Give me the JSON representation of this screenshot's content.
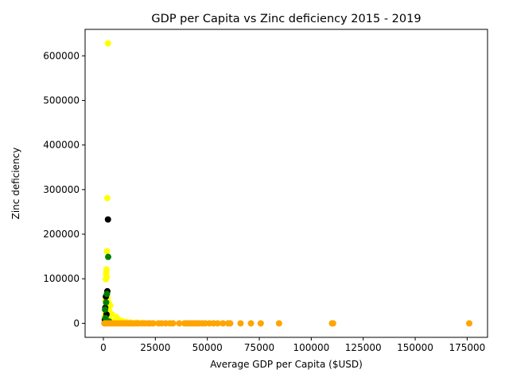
{
  "chart_data": {
    "type": "scatter",
    "title": "GDP per Capita vs Zinc deficiency 2015 - 2019",
    "xlabel": "Average GDP per Capita ($USD)",
    "ylabel": "Zinc deficiency",
    "xlim": [
      -8800,
      184800
    ],
    "ylim": [
      -31400,
      659400
    ],
    "x_ticks": [
      0,
      25000,
      50000,
      75000,
      100000,
      125000,
      150000,
      175000
    ],
    "y_ticks": [
      0,
      100000,
      200000,
      300000,
      400000,
      500000,
      600000
    ],
    "grid": false,
    "legend": "none",
    "series": [
      {
        "color": "#ffff00",
        "points": [
          [
            2200,
            628000
          ],
          [
            1900,
            281000
          ],
          [
            1700,
            162000
          ],
          [
            1500,
            121000
          ],
          [
            1400,
            116000
          ],
          [
            1300,
            111000
          ],
          [
            1500,
            104000
          ],
          [
            1200,
            99000
          ],
          [
            1800,
            70000
          ],
          [
            1600,
            64000
          ],
          [
            2000,
            58000
          ],
          [
            1100,
            52000
          ],
          [
            2400,
            47000
          ],
          [
            1300,
            44000
          ],
          [
            3300,
            40000
          ],
          [
            2000,
            37000
          ],
          [
            1500,
            33000
          ],
          [
            2700,
            28000
          ],
          [
            1100,
            24000
          ],
          [
            4200,
            20000
          ],
          [
            2500,
            17000
          ],
          [
            6200,
            14000
          ],
          [
            1800,
            12000
          ],
          [
            7100,
            9000
          ],
          [
            3000,
            7000
          ],
          [
            9000,
            5000
          ],
          [
            5000,
            4000
          ],
          [
            11000,
            3000
          ],
          [
            700,
            15000
          ],
          [
            900,
            6000
          ],
          [
            13000,
            2000
          ],
          [
            3800,
            2500
          ],
          [
            16000,
            1500
          ],
          [
            600,
            3000
          ],
          [
            19000,
            1000
          ]
        ]
      },
      {
        "color": "#000000",
        "points": [
          [
            2200,
            233000
          ],
          [
            1900,
            72000
          ],
          [
            1200,
            60000
          ],
          [
            900,
            35000
          ],
          [
            1500,
            20000
          ],
          [
            700,
            8000
          ]
        ]
      },
      {
        "color": "#008000",
        "points": [
          [
            2300,
            149000
          ],
          [
            1700,
            66000
          ],
          [
            1300,
            47000
          ],
          [
            800,
            31000
          ],
          [
            1000,
            12000
          ],
          [
            2800,
            4000
          ]
        ]
      },
      {
        "color": "#ffa500",
        "points": [
          [
            176000,
            0
          ],
          [
            110500,
            0
          ],
          [
            110000,
            0
          ],
          [
            84500,
            0
          ],
          [
            75700,
            0
          ],
          [
            71000,
            0
          ],
          [
            66000,
            0
          ],
          [
            61000,
            0
          ],
          [
            60000,
            0
          ],
          [
            57500,
            0
          ],
          [
            55000,
            0
          ],
          [
            53000,
            0
          ],
          [
            51000,
            0
          ],
          [
            49000,
            0
          ],
          [
            47500,
            0
          ],
          [
            46000,
            0
          ],
          [
            45000,
            0
          ],
          [
            44000,
            0
          ],
          [
            43000,
            0
          ],
          [
            42000,
            0
          ],
          [
            41000,
            0
          ],
          [
            40000,
            0
          ],
          [
            39000,
            0
          ],
          [
            36500,
            0
          ],
          [
            33500,
            0
          ],
          [
            32000,
            0
          ],
          [
            30000,
            0
          ],
          [
            28000,
            0
          ],
          [
            26500,
            0
          ],
          [
            24000,
            0
          ],
          [
            22500,
            0
          ],
          [
            21500,
            0
          ],
          [
            20000,
            0
          ],
          [
            18500,
            0
          ],
          [
            17000,
            0
          ],
          [
            16000,
            0
          ],
          [
            15000,
            0
          ],
          [
            14000,
            0
          ],
          [
            13000,
            0
          ],
          [
            12000,
            0
          ],
          [
            11000,
            0
          ],
          [
            10000,
            0
          ],
          [
            9000,
            0
          ],
          [
            8000,
            0
          ],
          [
            7000,
            0
          ],
          [
            6000,
            0
          ],
          [
            5000,
            0
          ],
          [
            4000,
            0
          ],
          [
            3000,
            0
          ],
          [
            2000,
            0
          ],
          [
            1000,
            0
          ],
          [
            500,
            0
          ]
        ]
      }
    ]
  }
}
